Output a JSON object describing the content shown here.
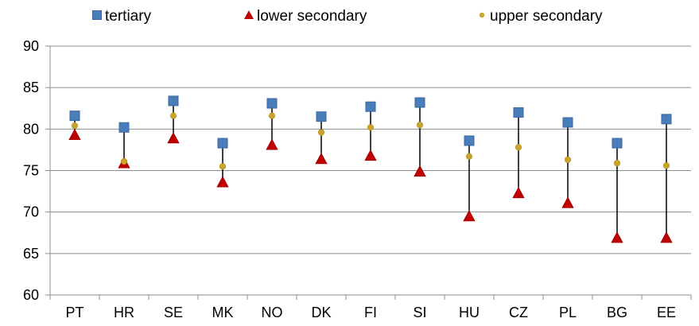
{
  "chart_data": {
    "type": "scatter",
    "categories": [
      "PT",
      "HR",
      "SE",
      "MK",
      "NO",
      "DK",
      "FI",
      "SI",
      "HU",
      "CZ",
      "PL",
      "BG",
      "EE"
    ],
    "series": [
      {
        "name": "tertiary",
        "marker": "square",
        "color": "#4a7ebb",
        "values": [
          81.6,
          80.2,
          83.4,
          78.3,
          83.1,
          81.5,
          82.7,
          83.2,
          78.6,
          82.0,
          80.8,
          78.3,
          81.2
        ]
      },
      {
        "name": "lower secondary",
        "marker": "triangle",
        "color": "#c00000",
        "values": [
          79.3,
          75.9,
          78.9,
          73.6,
          78.1,
          76.4,
          76.8,
          74.9,
          69.5,
          72.3,
          71.1,
          66.9,
          66.9
        ]
      },
      {
        "name": "upper secondary",
        "marker": "circle",
        "color": "#c8a62c",
        "values": [
          80.4,
          76.1,
          81.6,
          75.5,
          81.6,
          79.6,
          80.2,
          80.5,
          76.7,
          77.8,
          76.3,
          75.9,
          75.6
        ]
      }
    ],
    "title": "",
    "xlabel": "",
    "ylabel": "",
    "ylim": [
      60,
      90
    ],
    "yticks": [
      60,
      65,
      70,
      75,
      80,
      85,
      90
    ],
    "grid": true,
    "legend_position": "top",
    "range_line": true
  }
}
